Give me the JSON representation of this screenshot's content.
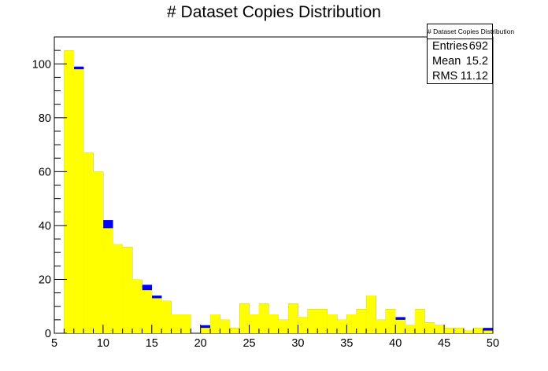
{
  "chart_data": {
    "type": "bar",
    "title": "# Dataset Copies Distribution",
    "xlabel": "",
    "ylabel": "",
    "xlim": [
      5,
      50
    ],
    "ylim": [
      0,
      110
    ],
    "bin_width": 1,
    "x_ticks": [
      5,
      10,
      15,
      20,
      25,
      30,
      35,
      40,
      45,
      50
    ],
    "y_ticks": [
      0,
      20,
      40,
      60,
      80,
      100
    ],
    "x_tick_labels": [
      "5",
      "10",
      "15",
      "20",
      "25",
      "30",
      "35",
      "40",
      "45",
      "50"
    ],
    "y_tick_labels": [
      "0",
      "20",
      "40",
      "60",
      "80",
      "100"
    ],
    "grid": false,
    "series": [
      {
        "color": "#0000ff",
        "categories": [
          6,
          7,
          8,
          9,
          10,
          11,
          12,
          13,
          14,
          15,
          16,
          17,
          18,
          19,
          20,
          21,
          22,
          23,
          24,
          25,
          26,
          27,
          28,
          29,
          30,
          31,
          32,
          33,
          34,
          35,
          36,
          37,
          38,
          39,
          40,
          41,
          42,
          43,
          44,
          45,
          46,
          47,
          48,
          49
        ],
        "values": [
          105,
          99,
          67,
          60,
          42,
          33,
          32,
          20,
          18,
          14,
          12,
          7,
          7,
          0,
          3,
          7,
          5,
          2,
          11,
          7,
          11,
          7,
          5,
          11,
          6,
          9,
          9,
          7,
          5,
          7,
          9,
          14,
          5,
          9,
          6,
          3,
          9,
          4,
          3,
          2,
          2,
          1,
          2,
          2
        ]
      },
      {
        "color": "#ffff00",
        "categories": [
          6,
          7,
          8,
          9,
          10,
          11,
          12,
          13,
          14,
          15,
          16,
          17,
          18,
          19,
          20,
          21,
          22,
          23,
          24,
          25,
          26,
          27,
          28,
          29,
          30,
          31,
          32,
          33,
          34,
          35,
          36,
          37,
          38,
          39,
          40,
          41,
          42,
          43,
          44,
          45,
          46,
          47,
          48,
          49
        ],
        "values": [
          105,
          98,
          67,
          60,
          39,
          33,
          32,
          20,
          16,
          13,
          12,
          7,
          7,
          0,
          2,
          7,
          5,
          2,
          11,
          7,
          11,
          7,
          5,
          11,
          6,
          9,
          9,
          7,
          5,
          7,
          9,
          14,
          5,
          9,
          5,
          3,
          9,
          4,
          3,
          2,
          2,
          1,
          2,
          1
        ]
      }
    ],
    "stats": {
      "title": "# Dataset Copies Distribution",
      "rows": [
        {
          "label": "Entries",
          "value": "692"
        },
        {
          "label": "Mean",
          "value": "15.2"
        },
        {
          "label": "RMS",
          "value": "11.12"
        }
      ],
      "placement": "top-right"
    }
  }
}
